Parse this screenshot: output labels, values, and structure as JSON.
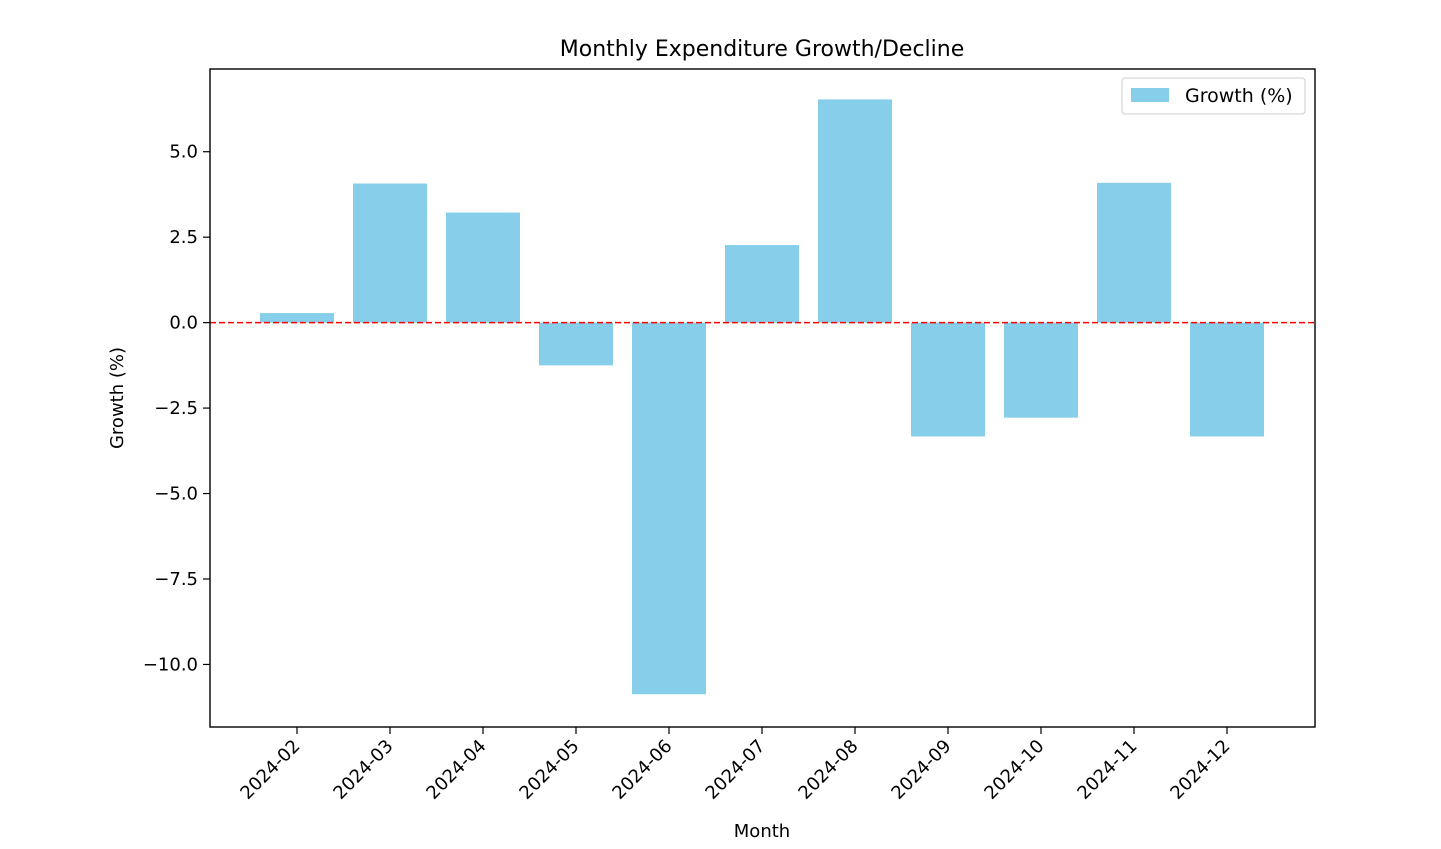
{
  "chart_data": {
    "type": "bar",
    "title": "Monthly Expenditure Growth/Decline",
    "xlabel": "Month",
    "ylabel": "Growth (%)",
    "categories": [
      "2024-02",
      "2024-03",
      "2024-04",
      "2024-05",
      "2024-06",
      "2024-07",
      "2024-08",
      "2024-09",
      "2024-10",
      "2024-11",
      "2024-12"
    ],
    "series": [
      {
        "name": "Growth (%)",
        "values": [
          0.28,
          4.07,
          3.22,
          -1.25,
          -10.87,
          2.27,
          6.53,
          -3.33,
          -2.78,
          4.09,
          -3.33
        ]
      }
    ],
    "ylim": [
      -11.83,
      7.42
    ],
    "yticks": [
      5.0,
      2.5,
      0.0,
      -2.5,
      -5.0,
      -7.5,
      -10.0
    ],
    "ytick_labels": [
      "5.0",
      "2.5",
      "0.0",
      "−2.5",
      "−5.0",
      "−7.5",
      "−10.0"
    ],
    "grid": false,
    "legend_position": "top-right",
    "reference_line": {
      "y": 0,
      "style": "dashed"
    },
    "colors": {
      "bar": "#87CEEB",
      "reference_line": "#ff0000",
      "axes": "#000000"
    }
  }
}
